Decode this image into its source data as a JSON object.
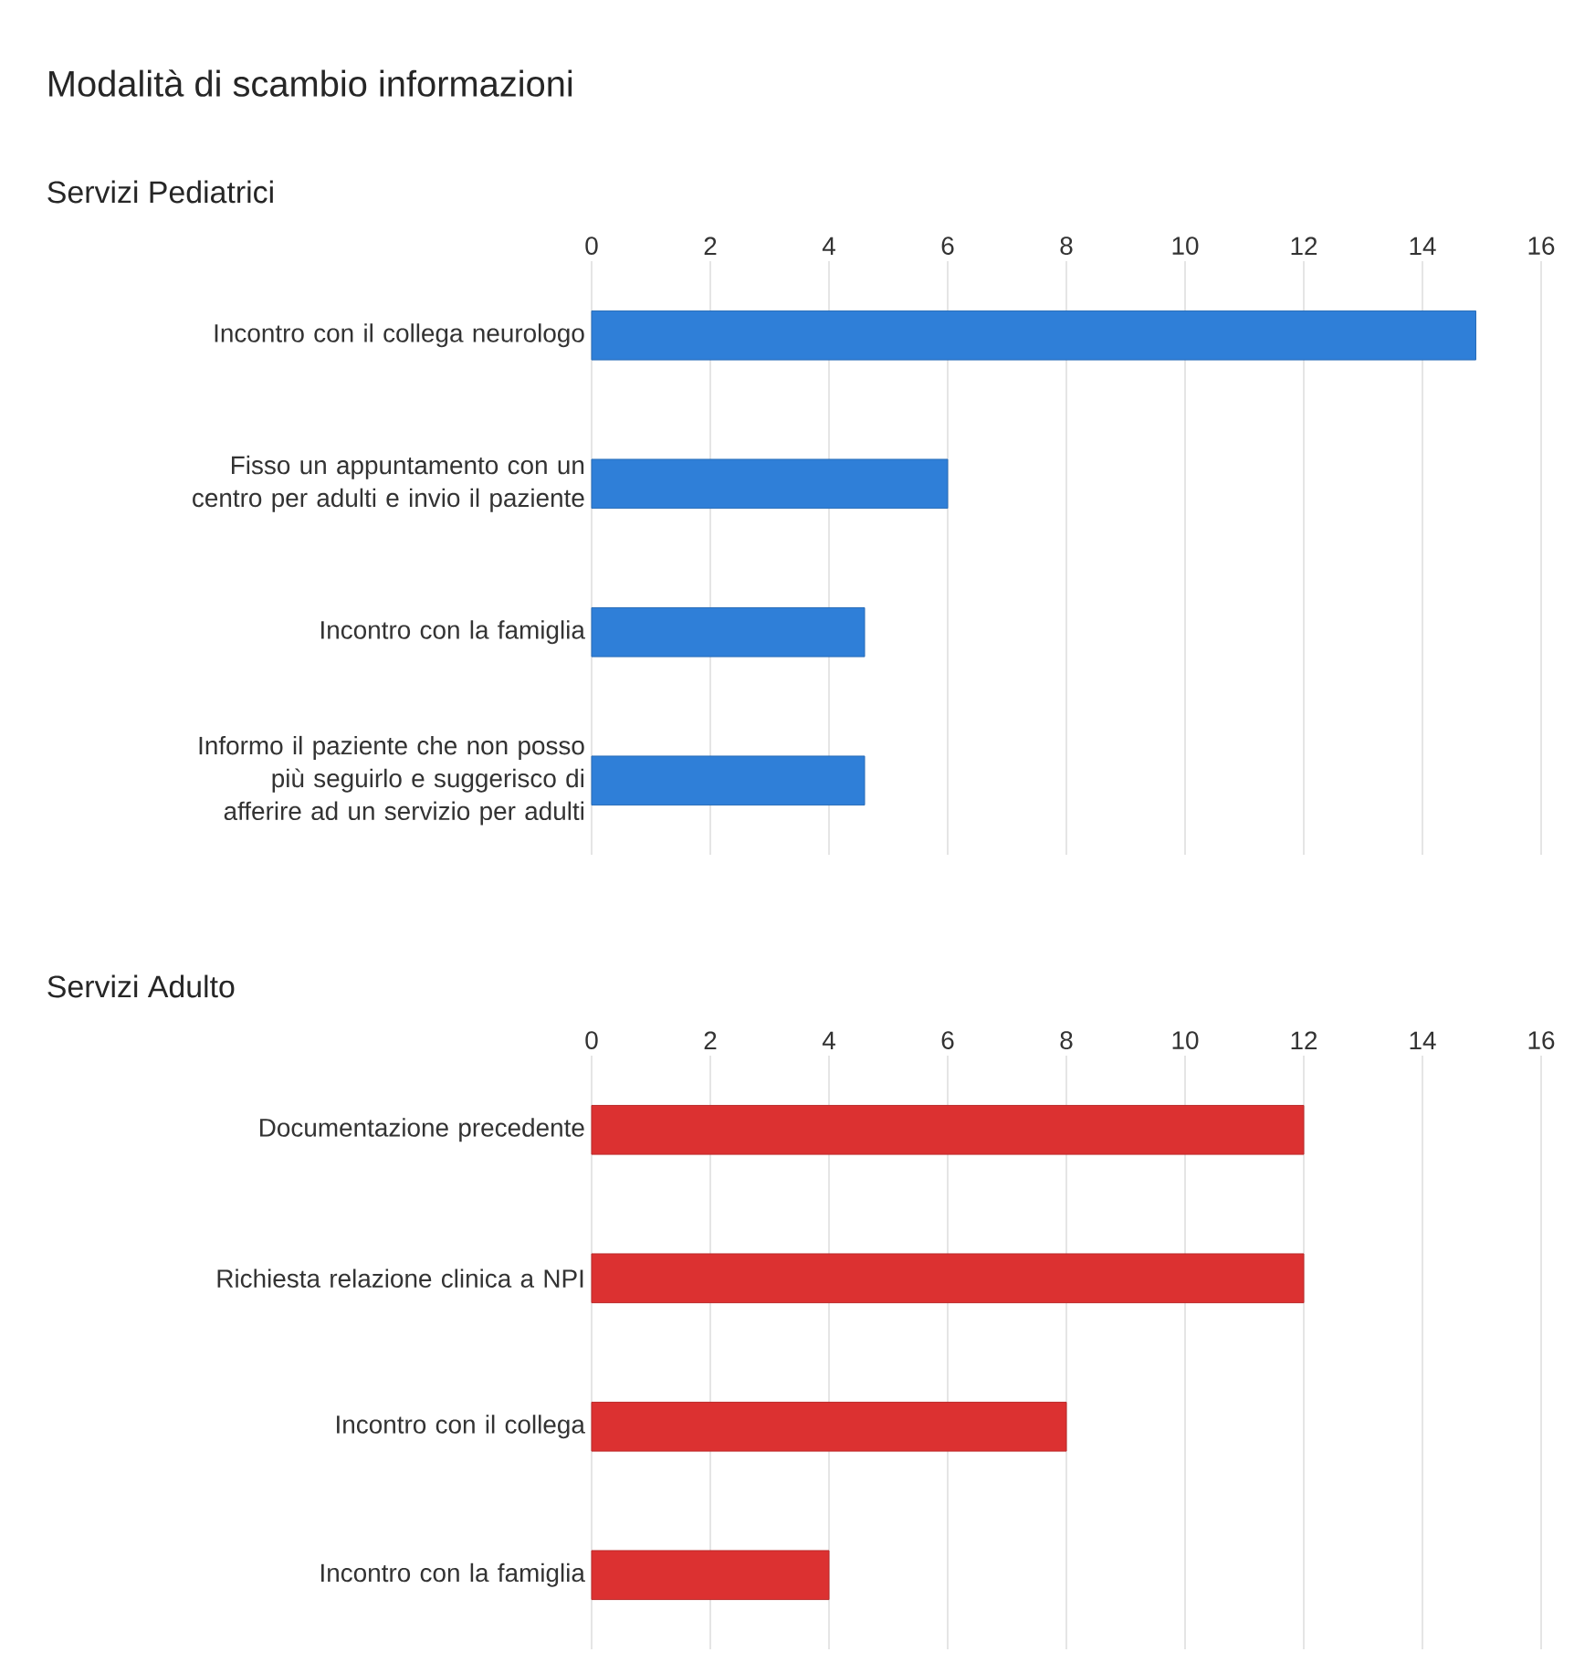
{
  "chart_data": [
    {
      "type": "bar",
      "orientation": "horizontal",
      "title": "Modalità di scambio informazioni",
      "subtitle": "Servizi Pediatrici",
      "categories": [
        "Incontro con il collega neurologo",
        "Fisso un appuntamento con un centro per adulti e invio il paziente",
        "Incontro con la famiglia",
        "Informo il paziente che non posso più seguirlo e suggerisco di afferire ad un servizio per adulti"
      ],
      "values": [
        14.9,
        6,
        4.6,
        4.6
      ],
      "color": "#2f7fd8",
      "xlim": [
        0,
        16
      ],
      "xticks": [
        0,
        2,
        4,
        6,
        8,
        10,
        12,
        14,
        16
      ],
      "grid": "x"
    },
    {
      "type": "bar",
      "orientation": "horizontal",
      "title": "Servizi Adulto",
      "categories": [
        "Documentazione precedente",
        "Richiesta relazione clinica a NPI",
        "Incontro con il collega",
        "Incontro con la famiglia"
      ],
      "values": [
        12,
        12,
        8,
        4
      ],
      "color": "#dc3131",
      "xlim": [
        0,
        16
      ],
      "xticks": [
        0,
        2,
        4,
        6,
        8,
        10,
        12,
        14,
        16
      ],
      "grid": "x"
    }
  ]
}
